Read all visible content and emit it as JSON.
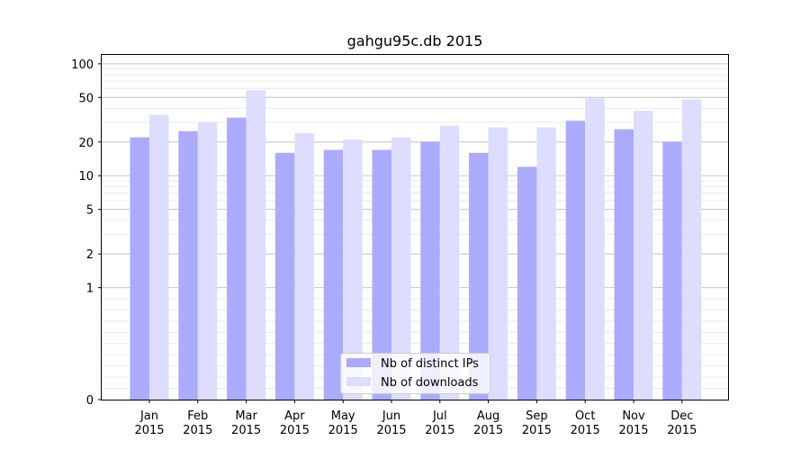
{
  "chart_data": {
    "type": "bar",
    "title": "gahgu95c.db 2015",
    "categories": [
      "Jan\n2015",
      "Feb\n2015",
      "Mar\n2015",
      "Apr\n2015",
      "May\n2015",
      "Jun\n2015",
      "Jul\n2015",
      "Aug\n2015",
      "Sep\n2015",
      "Oct\n2015",
      "Nov\n2015",
      "Dec\n2015"
    ],
    "series": [
      {
        "name": "Nb of distinct IPs",
        "color": "#aaaaff",
        "values": [
          22,
          25,
          33,
          16,
          17,
          17,
          20,
          16,
          12,
          31,
          26,
          20
        ]
      },
      {
        "name": "Nb of downloads",
        "color": "#ddddff",
        "values": [
          35,
          30,
          58,
          24,
          21,
          22,
          28,
          27,
          27,
          49,
          38,
          48
        ]
      }
    ],
    "y_scale": "symlog",
    "ylim": [
      0,
      120
    ],
    "yticks": [
      0,
      1,
      2,
      5,
      10,
      20,
      50,
      100
    ],
    "ytick_labels": [
      "0",
      "1",
      "2",
      "5",
      "10",
      "20",
      "50",
      "100"
    ],
    "grid": true,
    "legend_position": "bottom-center"
  }
}
